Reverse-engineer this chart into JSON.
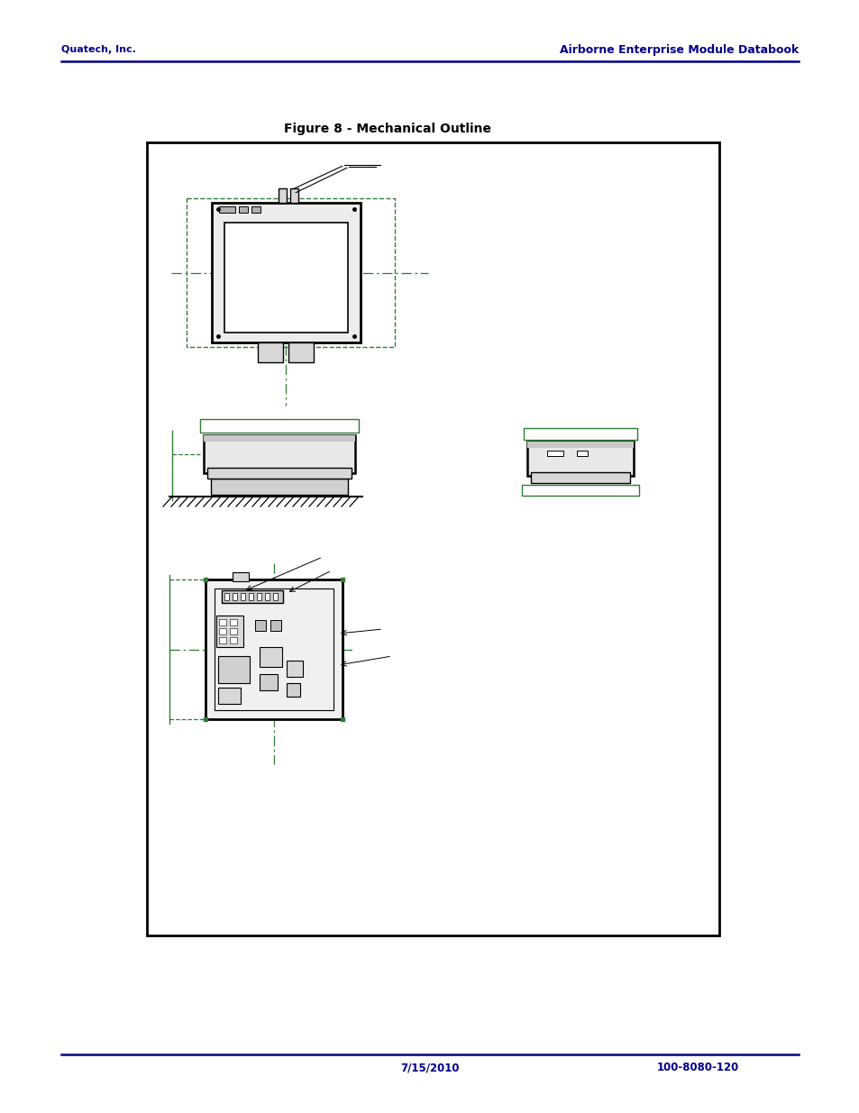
{
  "page_title_left": "Quatech, Inc.",
  "page_title_right": "Airborne Enterprise Module Databook",
  "figure_title": "Figure 8 - Mechanical Outline",
  "footer_left": "7/15/2010",
  "footer_right": "100-8080-120",
  "header_color": "#00008B",
  "dark": "#000000",
  "green": "#2E7D32",
  "white": "#ffffff",
  "gray_light": "#d8d8d8",
  "gray_med": "#b0b0b0"
}
